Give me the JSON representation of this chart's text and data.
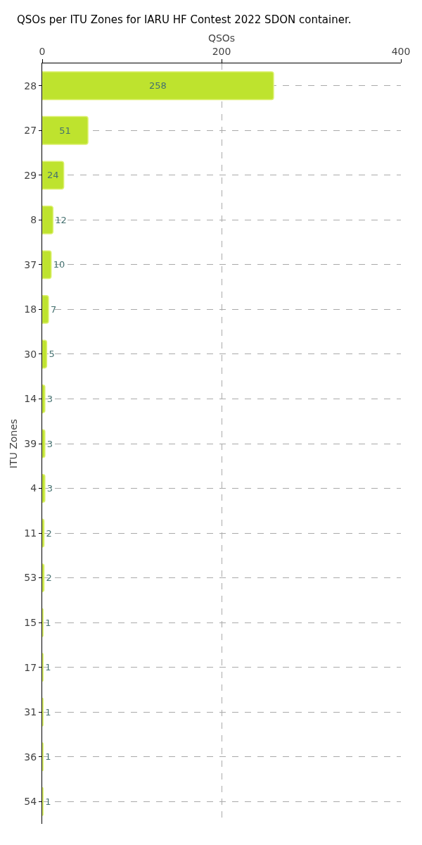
{
  "chart_data": {
    "type": "bar",
    "orientation": "horizontal",
    "title": "QSOs per ITU Zones for IARU HF Contest 2022 SDON container.",
    "xlabel": "QSOs",
    "ylabel": "ITU Zones",
    "categories": [
      "28",
      "27",
      "29",
      "8",
      "37",
      "18",
      "30",
      "14",
      "39",
      "4",
      "11",
      "53",
      "15",
      "17",
      "31",
      "36",
      "54"
    ],
    "values": [
      258,
      51,
      24,
      12,
      10,
      7,
      5,
      3,
      3,
      3,
      2,
      2,
      1,
      1,
      1,
      1,
      1
    ],
    "color": "#bee32e",
    "xlim": [
      0,
      400
    ],
    "xticks": [
      0,
      200,
      400
    ],
    "grid": true,
    "data_labels": true
  }
}
